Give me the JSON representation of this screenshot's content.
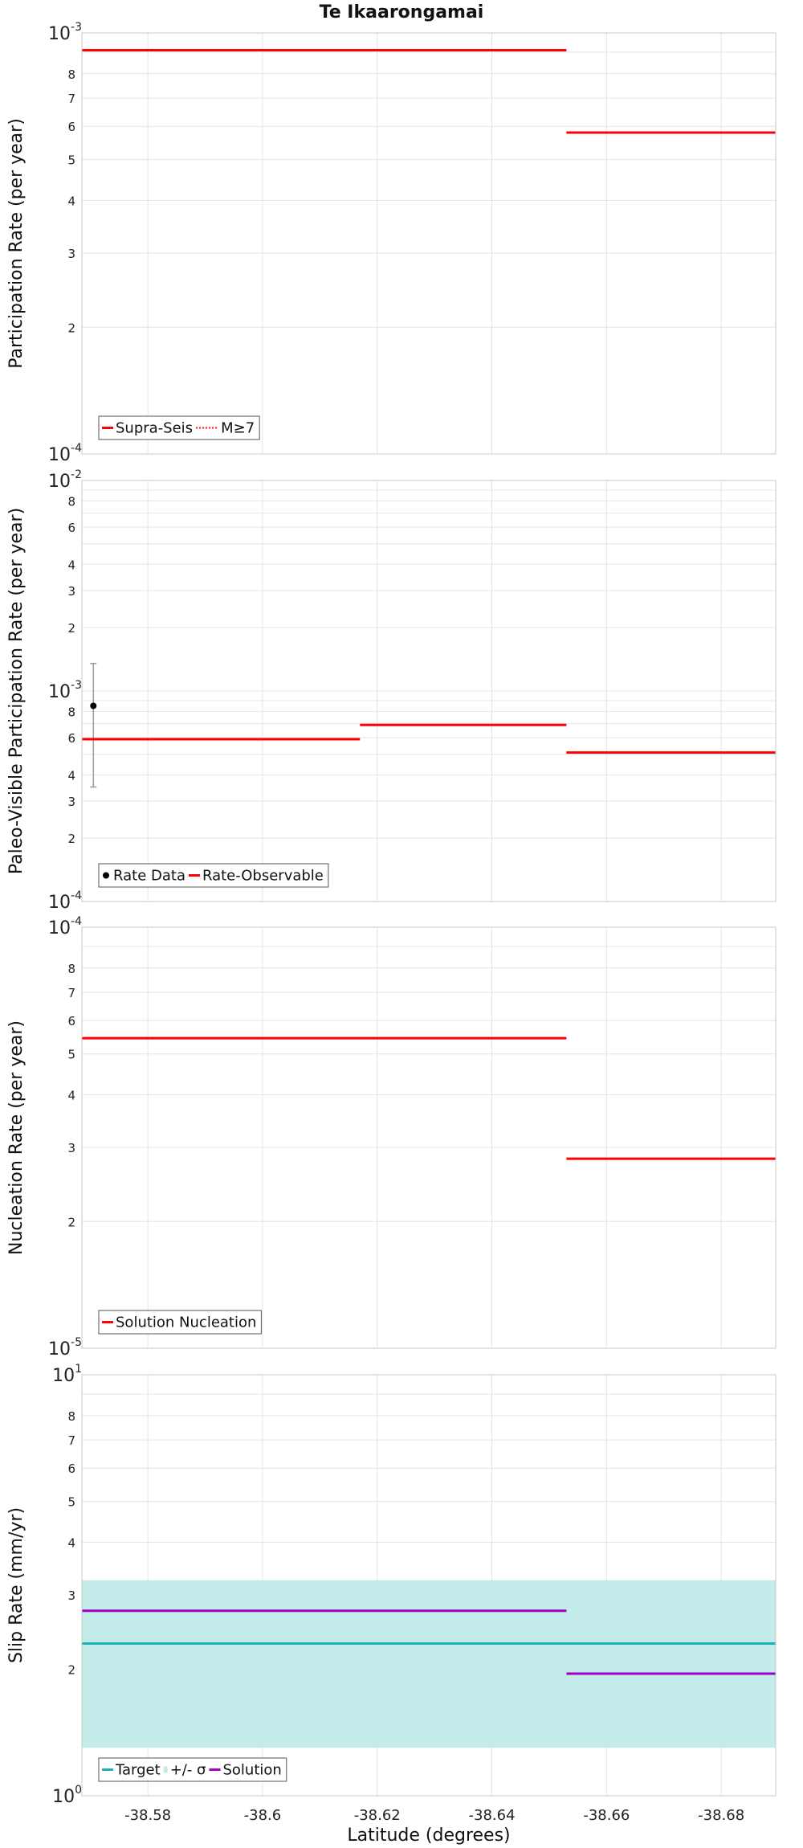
{
  "title": "Te Ikaarongamai",
  "xlabel": "Latitude (degrees)",
  "colors": {
    "red": "#ff0000",
    "teal": "#19b3b3",
    "band": "#c3ebe9",
    "purple": "#a000c8",
    "black": "#000000",
    "errorbar": "#999999"
  },
  "chart_data": [
    {
      "type": "line",
      "name": "participation",
      "title": "Te Ikaarongamai",
      "ylabel": "Participation Rate (per year)",
      "xlabel": "",
      "xlim": [
        -38.5685,
        -38.6895
      ],
      "ylim": [
        0.0001,
        0.001
      ],
      "yscale": "log",
      "yticks": [
        {
          "v": 0.001,
          "base": "10",
          "exp": "-3"
        },
        {
          "v": 0.0008,
          "label": "8"
        },
        {
          "v": 0.0007,
          "label": "7"
        },
        {
          "v": 0.0006,
          "label": "6"
        },
        {
          "v": 0.0005,
          "label": "5"
        },
        {
          "v": 0.0004,
          "label": "4"
        },
        {
          "v": 0.0003,
          "label": "3"
        },
        {
          "v": 0.0002,
          "label": "2"
        },
        {
          "v": 0.0001,
          "base": "10",
          "exp": "-4"
        }
      ],
      "series": [
        {
          "name": "Supra-Seis",
          "style": "solid",
          "color": "#ff0000",
          "segments": [
            [
              -38.5685,
              -38.653,
              0.00091
            ],
            [
              -38.653,
              -38.6895,
              0.00058
            ]
          ]
        },
        {
          "name": "M≥7",
          "style": "dotted",
          "color": "#ff0000",
          "segments": [
            [
              -38.5685,
              -38.653,
              0.00091
            ],
            [
              -38.653,
              -38.6895,
              0.00058
            ]
          ]
        }
      ],
      "legend": [
        {
          "label": "Supra-Seis",
          "symbol": "line",
          "color": "#ff0000"
        },
        {
          "label": "M≥7",
          "symbol": "dotted",
          "color": "#ff0000"
        }
      ],
      "legend_loc": "lower-left"
    },
    {
      "type": "line",
      "name": "paleo",
      "title": "",
      "ylabel": "Paleo-Visible Participation Rate (per year)",
      "xlabel": "",
      "xlim": [
        -38.5685,
        -38.6895
      ],
      "ylim": [
        0.0001,
        0.01
      ],
      "yscale": "log",
      "yticks": [
        {
          "v": 0.01,
          "base": "10",
          "exp": "-2"
        },
        {
          "v": 0.008,
          "label": "8"
        },
        {
          "v": 0.006,
          "label": "6"
        },
        {
          "v": 0.004,
          "label": "4"
        },
        {
          "v": 0.003,
          "label": "3"
        },
        {
          "v": 0.002,
          "label": "2"
        },
        {
          "v": 0.001,
          "base": "10",
          "exp": "-3"
        },
        {
          "v": 0.0008,
          "label": "8"
        },
        {
          "v": 0.0006,
          "label": "6"
        },
        {
          "v": 0.0004,
          "label": "4"
        },
        {
          "v": 0.0003,
          "label": "3"
        },
        {
          "v": 0.0002,
          "label": "2"
        },
        {
          "v": 0.0001,
          "base": "10",
          "exp": "-4"
        }
      ],
      "series": [
        {
          "name": "Rate-Observable",
          "style": "solid",
          "color": "#ff0000",
          "segments": [
            [
              -38.5685,
              -38.617,
              0.00059
            ],
            [
              -38.617,
              -38.653,
              0.00069
            ],
            [
              -38.653,
              -38.6895,
              0.00051
            ]
          ]
        }
      ],
      "points": [
        {
          "name": "Rate Data",
          "x": -38.5705,
          "y": 0.00085,
          "ylo": 0.00035,
          "yhi": 0.00135
        }
      ],
      "legend": [
        {
          "label": "Rate Data",
          "symbol": "dot",
          "color": "#000000"
        },
        {
          "label": "Rate-Observable",
          "symbol": "line",
          "color": "#ff0000"
        }
      ],
      "legend_loc": "lower-left"
    },
    {
      "type": "line",
      "name": "nucleation",
      "title": "",
      "ylabel": "Nucleation Rate (per year)",
      "xlabel": "",
      "xlim": [
        -38.5685,
        -38.6895
      ],
      "ylim": [
        1e-05,
        0.0001
      ],
      "yscale": "log",
      "yticks": [
        {
          "v": 0.0001,
          "base": "10",
          "exp": "-4"
        },
        {
          "v": 8e-05,
          "label": "8"
        },
        {
          "v": 7e-05,
          "label": "7"
        },
        {
          "v": 6e-05,
          "label": "6"
        },
        {
          "v": 5e-05,
          "label": "5"
        },
        {
          "v": 4e-05,
          "label": "4"
        },
        {
          "v": 3e-05,
          "label": "3"
        },
        {
          "v": 2e-05,
          "label": "2"
        },
        {
          "v": 1e-05,
          "base": "10",
          "exp": "-5"
        }
      ],
      "series": [
        {
          "name": "Solution Nucleation",
          "style": "solid",
          "color": "#ff0000",
          "segments": [
            [
              -38.5685,
              -38.653,
              5.45e-05
            ],
            [
              -38.653,
              -38.6895,
              2.82e-05
            ]
          ]
        }
      ],
      "legend": [
        {
          "label": "Solution Nucleation",
          "symbol": "line",
          "color": "#ff0000"
        }
      ],
      "legend_loc": "lower-left"
    },
    {
      "type": "line",
      "name": "slip",
      "title": "",
      "ylabel": "Slip Rate (mm/yr)",
      "xlabel": "Latitude (degrees)",
      "xlim": [
        -38.5685,
        -38.6895
      ],
      "ylim": [
        1,
        10
      ],
      "yscale": "log",
      "xticks": [
        -38.58,
        -38.6,
        -38.62,
        -38.64,
        -38.66,
        -38.68
      ],
      "yticks": [
        {
          "v": 10,
          "base": "10",
          "exp": "1"
        },
        {
          "v": 8,
          "label": "8"
        },
        {
          "v": 7,
          "label": "7"
        },
        {
          "v": 6,
          "label": "6"
        },
        {
          "v": 5,
          "label": "5"
        },
        {
          "v": 4,
          "label": "4"
        },
        {
          "v": 3,
          "label": "3"
        },
        {
          "v": 2,
          "label": "2"
        },
        {
          "v": 1,
          "base": "10",
          "exp": "0"
        }
      ],
      "band": {
        "name": "+/- σ",
        "x0": -38.5685,
        "x1": -38.6895,
        "ylo": 1.3,
        "yhi": 3.25,
        "color": "#c3ebe9"
      },
      "series": [
        {
          "name": "Target",
          "style": "solid",
          "color": "#19b3b3",
          "segments": [
            [
              -38.5685,
              -38.6895,
              2.3
            ]
          ]
        },
        {
          "name": "Solution",
          "style": "solid",
          "color": "#a000c8",
          "segments": [
            [
              -38.5685,
              -38.653,
              2.75
            ],
            [
              -38.653,
              -38.6895,
              1.95
            ]
          ]
        }
      ],
      "legend": [
        {
          "label": "Target",
          "symbol": "line",
          "color": "#19b3b3"
        },
        {
          "label": "+/- σ",
          "symbol": "band",
          "color": "#c3ebe9"
        },
        {
          "label": "Solution",
          "symbol": "line",
          "color": "#a000c8"
        }
      ],
      "legend_loc": "lower-left"
    }
  ]
}
